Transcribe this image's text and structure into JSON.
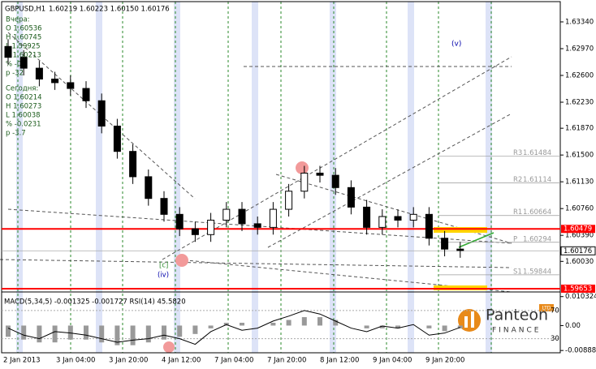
{
  "header": {
    "symbol": "GBPUSD,H1",
    "ohlc": "1.60219 1.60223 1.60150 1.60176"
  },
  "info": [
    "Вчера:",
    "O 1.60536",
    "H 1.60745",
    "L 1.59925",
    "C 1.60213",
    "% -0.2",
    "p -32",
    "Сегодня:",
    "O 1.60214",
    "H 1.60273",
    "L 1.60038",
    "% -0.0231",
    "p -3.7"
  ],
  "waves": [
    "(v)",
    "[c]",
    "(iv)"
  ],
  "logo": {
    "name": "Panteon",
    "sub": "FINANCE",
    "badge": "LTD"
  },
  "chart_data": [
    {
      "type": "candlestick",
      "open": [
        1.63,
        1.6285,
        1.627,
        1.6255,
        1.625,
        1.6242,
        1.6225,
        1.619,
        1.6155,
        1.612,
        1.609,
        1.6068,
        1.6048,
        1.604,
        1.606,
        1.6075,
        1.6055,
        1.605,
        1.6075,
        1.61,
        1.6125,
        1.6122,
        1.6105,
        1.6078,
        1.605,
        1.6065,
        1.606,
        1.6068,
        1.6035,
        1.602
      ],
      "high": [
        1.631,
        1.6295,
        1.628,
        1.6265,
        1.626,
        1.6252,
        1.6235,
        1.62,
        1.6165,
        1.613,
        1.61,
        1.6078,
        1.6058,
        1.607,
        1.6085,
        1.6085,
        1.6065,
        1.6085,
        1.611,
        1.6135,
        1.6135,
        1.6132,
        1.6115,
        1.6088,
        1.6075,
        1.6075,
        1.6078,
        1.6078,
        1.6045,
        1.603
      ],
      "low": [
        1.6275,
        1.626,
        1.6245,
        1.624,
        1.6232,
        1.6215,
        1.618,
        1.6145,
        1.611,
        1.608,
        1.6058,
        1.6038,
        1.603,
        1.603,
        1.605,
        1.6045,
        1.604,
        1.604,
        1.6065,
        1.609,
        1.6112,
        1.6095,
        1.6068,
        1.604,
        1.604,
        1.605,
        1.605,
        1.6025,
        1.601,
        1.6008
      ],
      "close": [
        1.6285,
        1.627,
        1.6255,
        1.625,
        1.6242,
        1.6225,
        1.619,
        1.6155,
        1.612,
        1.609,
        1.6068,
        1.6048,
        1.604,
        1.606,
        1.6075,
        1.6055,
        1.605,
        1.6075,
        1.61,
        1.6125,
        1.6122,
        1.6105,
        1.6078,
        1.605,
        1.6065,
        1.606,
        1.6068,
        1.6035,
        1.602,
        1.6018
      ],
      "ylim": [
        1.5963,
        1.6362
      ],
      "yticks": [
        {
          "value": 1.6334,
          "label": "1.63340"
        },
        {
          "value": 1.6297,
          "label": "1.62970"
        },
        {
          "value": 1.626,
          "label": "1.62600"
        },
        {
          "value": 1.6223,
          "label": "1.62230"
        },
        {
          "value": 1.6187,
          "label": "1.61870"
        },
        {
          "value": 1.615,
          "label": "1.61500"
        },
        {
          "value": 1.6113,
          "label": "1.61130"
        },
        {
          "value": 1.6076,
          "label": "1.60760"
        },
        {
          "value": 1.6039,
          "label": "1.60390"
        },
        {
          "value": 1.6003,
          "label": "1.60030"
        }
      ],
      "x_labels": [
        "2 Jan 2013",
        "3 Jan 04:00",
        "3 Jan 20:00",
        "4 Jan 12:00",
        "7 Jan 04:00",
        "7 Jan 20:00",
        "8 Jan 12:00",
        "9 Jan 04:00",
        "9 Jan 20:00"
      ],
      "pivots": [
        {
          "name": "R3",
          "value": 1.61484
        },
        {
          "name": "R2",
          "value": 1.61114
        },
        {
          "name": "R1",
          "value": 1.60664
        },
        {
          "name": "P",
          "value": 1.60294
        },
        {
          "name": "S1",
          "value": 1.59844
        }
      ],
      "levels": [
        {
          "value": 1.60479,
          "color": "#ff0000"
        },
        {
          "value": 1.59653,
          "color": "#ff0000"
        }
      ],
      "current": {
        "value": 1.60176,
        "color": "#000000"
      }
    },
    {
      "type": "indicator",
      "title": "MACD(5,34,5) -0.001325 -0.001727 RSI(14) 45.5820",
      "macd": [
        -0.004,
        -0.005,
        -0.006,
        -0.006,
        -0.005,
        -0.005,
        -0.006,
        -0.007,
        -0.007,
        -0.006,
        -0.005,
        -0.004,
        -0.003,
        -0.001,
        0.001,
        0.001,
        0,
        0.001,
        0.002,
        0.003,
        0.003,
        0.002,
        0,
        -0.001,
        -0.001,
        -0.001,
        0,
        -0.001,
        -0.002,
        -0.001
      ],
      "ylim": [
        -0.0097,
        0.0114
      ],
      "yticks": [
        0.010324,
        {
          "value": 0,
          "label": "0.00"
        },
        -0.008881
      ],
      "rsi": [
        45,
        35,
        30,
        40,
        38,
        35,
        30,
        25,
        28,
        30,
        35,
        30,
        22,
        40,
        50,
        42,
        45,
        55,
        62,
        70,
        65,
        55,
        45,
        40,
        48,
        45,
        50,
        35,
        38,
        46
      ],
      "y2lim": [
        10,
        94
      ],
      "y2ticks": [
        70,
        30
      ]
    }
  ]
}
